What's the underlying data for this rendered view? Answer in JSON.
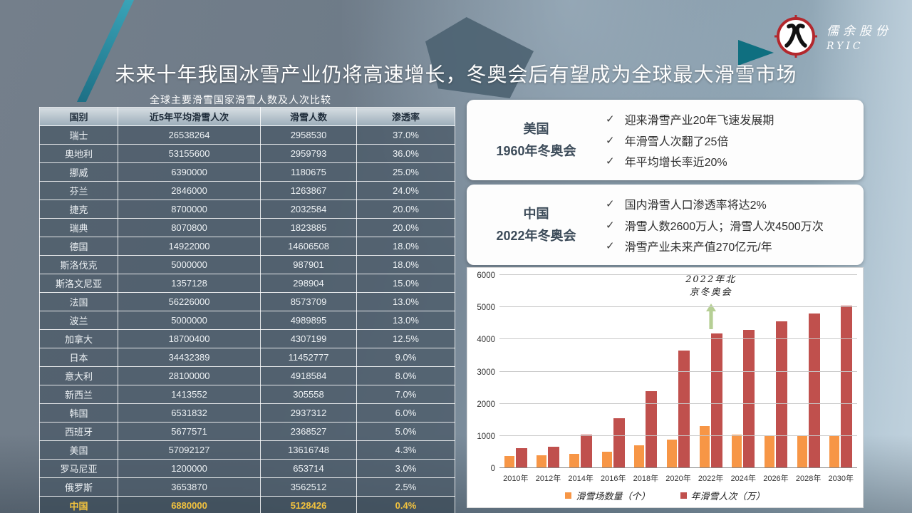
{
  "slide": {
    "title": "未来十年我国冰雪产业仍将高速增长，冬奥会后有望成为全球最大滑雪市场"
  },
  "logo": {
    "company": "儒余股份",
    "abbr": "RYIC"
  },
  "ui": {
    "check": "✓"
  },
  "table": {
    "title": "全球主要滑雪国家滑雪人数及人次比较",
    "headers": [
      "国别",
      "近5年平均滑雪人次",
      "滑雪人数",
      "渗透率"
    ],
    "rows": [
      [
        "瑞士",
        "26538264",
        "2958530",
        "37.0%"
      ],
      [
        "奥地利",
        "53155600",
        "2959793",
        "36.0%"
      ],
      [
        "挪威",
        "6390000",
        "1180675",
        "25.0%"
      ],
      [
        "芬兰",
        "2846000",
        "1263867",
        "24.0%"
      ],
      [
        "捷克",
        "8700000",
        "2032584",
        "20.0%"
      ],
      [
        "瑞典",
        "8070800",
        "1823885",
        "20.0%"
      ],
      [
        "德国",
        "14922000",
        "14606508",
        "18.0%"
      ],
      [
        "斯洛伐克",
        "5000000",
        "987901",
        "18.0%"
      ],
      [
        "斯洛文尼亚",
        "1357128",
        "298904",
        "15.0%"
      ],
      [
        "法国",
        "56226000",
        "8573709",
        "13.0%"
      ],
      [
        "波兰",
        "5000000",
        "4989895",
        "13.0%"
      ],
      [
        "加拿大",
        "18700400",
        "4307199",
        "12.5%"
      ],
      [
        "日本",
        "34432389",
        "11452777",
        "9.0%"
      ],
      [
        "意大利",
        "28100000",
        "4918584",
        "8.0%"
      ],
      [
        "新西兰",
        "1413552",
        "305558",
        "7.0%"
      ],
      [
        "韩国",
        "6531832",
        "2937312",
        "6.0%"
      ],
      [
        "西班牙",
        "5677571",
        "2368527",
        "5.0%"
      ],
      [
        "美国",
        "57092127",
        "13616748",
        "4.3%"
      ],
      [
        "罗马尼亚",
        "1200000",
        "653714",
        "3.0%"
      ],
      [
        "俄罗斯",
        "3653870",
        "3562512",
        "2.5%"
      ],
      [
        "中国",
        "6880000",
        "5128426",
        "0.4%"
      ]
    ],
    "highlight_country": "中国"
  },
  "info_boxes": [
    {
      "label_line1": "美国",
      "label_line2": "1960年冬奥会",
      "bullets": [
        "迎来滑雪产业20年飞速发展期",
        "年滑雪人次翻了25倍",
        "年平均增长率近20%"
      ]
    },
    {
      "label_line1": "中国",
      "label_line2": "2022年冬奥会",
      "bullets": [
        "国内滑雪人口渗透率将达2%",
        "滑雪人数2600万人；滑雪人次4500万次",
        "滑雪产业未来产值270亿元/年"
      ]
    }
  ],
  "chart_data": {
    "type": "bar",
    "categories": [
      "2010年",
      "2012年",
      "2014年",
      "2016年",
      "2018年",
      "2020年",
      "2022年",
      "2024年",
      "2026年",
      "2028年",
      "2030年"
    ],
    "series": [
      {
        "name": "滑雪场数量（个）",
        "color": "#F79646",
        "values": [
          380,
          400,
          440,
          510,
          700,
          890,
          1300,
          1050,
          1010,
          1000,
          1000
        ]
      },
      {
        "name": "年滑雪人次（万）",
        "color": "#C0504D",
        "values": [
          620,
          660,
          1030,
          1550,
          2400,
          3650,
          4180,
          4300,
          4570,
          4800,
          5050
        ]
      }
    ],
    "ylim": [
      0,
      6000
    ],
    "ytick_step": 1000,
    "grid": true,
    "legend_position": "bottom",
    "annotation": {
      "line1": "2022年北",
      "line2": "京冬奥会",
      "target_category": "2022年",
      "arrow_color": "#B6CF95"
    }
  }
}
